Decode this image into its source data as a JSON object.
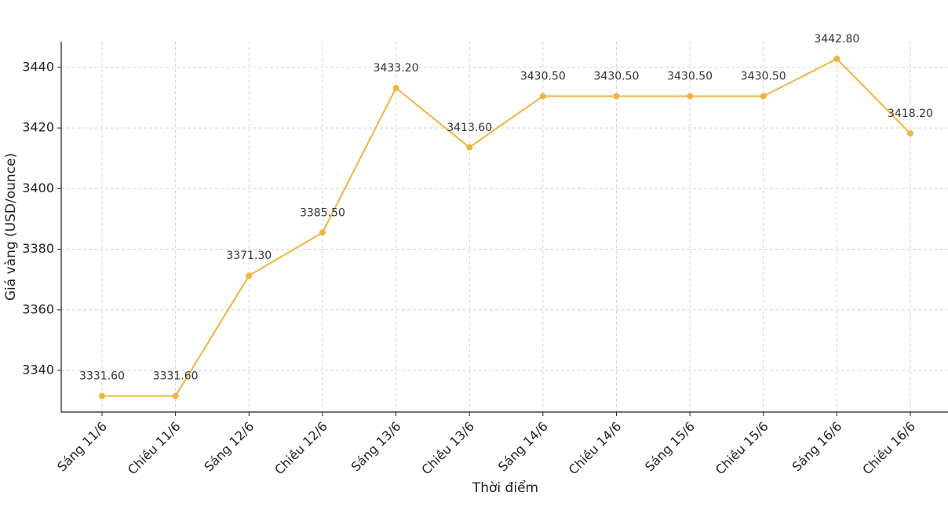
{
  "chart_data": {
    "type": "line",
    "x_label": "Thời điểm",
    "y_label": "Giá vàng (USD/ounce)",
    "categories": [
      "Sáng 11/6",
      "Chiều 11/6",
      "Sáng 12/6",
      "Chiều 12/6",
      "Sáng 13/6",
      "Chiều 13/6",
      "Sáng 14/6",
      "Chiều 14/6",
      "Sáng 15/6",
      "Chiều 15/6",
      "Sáng 16/6",
      "Chiều 16/6"
    ],
    "series": [
      {
        "color": "#f0b43f",
        "values": [
          3331.6,
          3331.6,
          3371.3,
          3385.5,
          3433.2,
          3413.6,
          3430.5,
          3430.5,
          3430.5,
          3430.5,
          3442.8,
          3418.2
        ],
        "value_labels": [
          "3331.60",
          "3331.60",
          "3371.30",
          "3385.50",
          "3433.20",
          "3413.60",
          "3430.50",
          "3430.50",
          "3430.50",
          "3430.50",
          "3442.80",
          "3418.20"
        ]
      }
    ],
    "ylim": [
      3326.3,
      3448.5
    ],
    "yticks": [
      3340,
      3360,
      3380,
      3400,
      3420,
      3440
    ],
    "grid": true
  }
}
